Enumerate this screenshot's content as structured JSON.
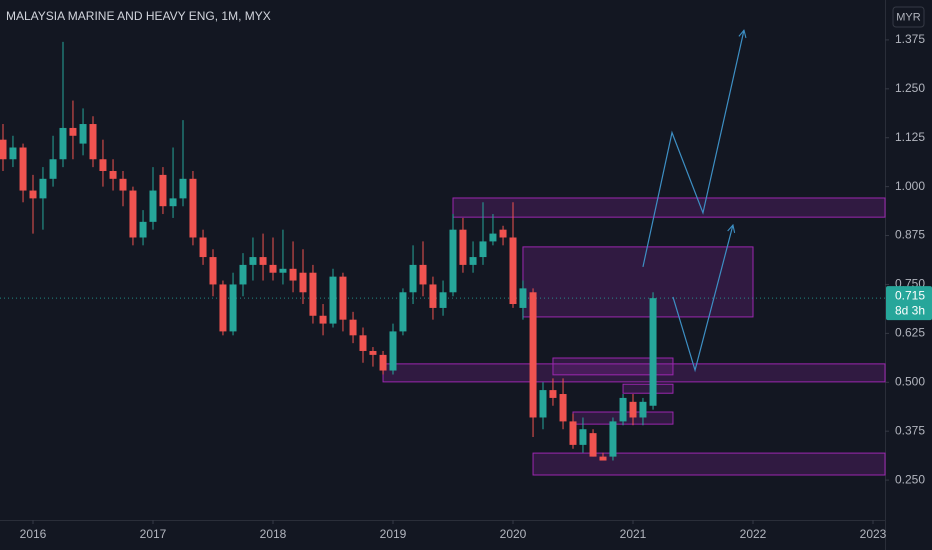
{
  "chart_data": {
    "type": "candlestick",
    "title": "MALAYSIA MARINE AND HEAVY ENG, 1M, MYX",
    "currency": "MYR",
    "countdown": "8d 3h",
    "last_price": 0.715,
    "up_color": "#26a69a",
    "down_color": "#ef5350",
    "zone_color": "#9c27b0",
    "arrow_color": "#3d8fc4",
    "xlim": [
      2015.725,
      2023.1
    ],
    "xticks": [
      2016,
      2017,
      2018,
      2019,
      2020,
      2021,
      2022,
      2023
    ],
    "ylim": [
      0.148,
      1.477
    ],
    "yticks": [
      {
        "value": 0.25,
        "label": "0.250"
      },
      0.375,
      {
        "value": 0.5,
        "label": "0.500"
      },
      0.625,
      {
        "value": 0.75,
        "label": "0.750"
      },
      0.875,
      {
        "value": 1,
        "label": "1.000"
      },
      1.125,
      {
        "value": 1.25,
        "label": "1.250"
      },
      1.375
    ],
    "x": [
      2015.75,
      2015.833,
      2015.917,
      2016.0,
      2016.083,
      2016.167,
      2016.25,
      2016.333,
      2016.417,
      2016.5,
      2016.583,
      2016.667,
      2016.75,
      2016.833,
      2016.917,
      2017.0,
      2017.083,
      2017.167,
      2017.25,
      2017.333,
      2017.417,
      2017.5,
      2017.583,
      2017.667,
      2017.75,
      2017.833,
      2017.917,
      2018.0,
      2018.083,
      2018.167,
      2018.25,
      2018.333,
      2018.417,
      2018.5,
      2018.583,
      2018.667,
      2018.75,
      2018.833,
      2018.917,
      2019.0,
      2019.083,
      2019.167,
      2019.25,
      2019.333,
      2019.417,
      2019.5,
      2019.583,
      2019.667,
      2019.75,
      2019.833,
      2019.917,
      2020.0,
      2020.083,
      2020.167,
      2020.25,
      2020.333,
      2020.417,
      2020.5,
      2020.583,
      2020.667,
      2020.75,
      2020.833,
      2020.917,
      2021.0,
      2021.083,
      2021.167
    ],
    "open": [
      1.12,
      1.07,
      1.1,
      0.99,
      0.97,
      1.02,
      1.07,
      1.15,
      1.11,
      1.16,
      1.07,
      1.04,
      1.02,
      0.99,
      0.87,
      0.91,
      1.03,
      0.95,
      0.97,
      1.02,
      0.87,
      0.82,
      0.75,
      0.63,
      0.75,
      0.8,
      0.82,
      0.8,
      0.78,
      0.79,
      0.78,
      0.78,
      0.67,
      0.65,
      0.77,
      0.66,
      0.62,
      0.58,
      0.57,
      0.53,
      0.63,
      0.73,
      0.8,
      0.75,
      0.69,
      0.73,
      0.89,
      0.8,
      0.82,
      0.86,
      0.89,
      0.87,
      0.69,
      0.73,
      0.41,
      0.48,
      0.47,
      0.4,
      0.34,
      0.37,
      0.31,
      0.31,
      0.4,
      0.45,
      0.41,
      0.44
    ],
    "high": [
      1.16,
      1.13,
      1.11,
      1.03,
      1.05,
      1.13,
      1.37,
      1.22,
      1.2,
      1.18,
      1.12,
      1.07,
      1.04,
      1.0,
      0.94,
      1.05,
      1.05,
      1.1,
      1.17,
      1.04,
      0.89,
      0.84,
      0.76,
      0.78,
      0.83,
      0.87,
      0.88,
      0.87,
      0.89,
      0.86,
      0.84,
      0.8,
      0.7,
      0.79,
      0.78,
      0.68,
      0.64,
      0.59,
      0.58,
      0.65,
      0.74,
      0.85,
      0.86,
      0.77,
      0.76,
      0.93,
      0.92,
      0.86,
      0.96,
      0.93,
      0.9,
      0.96,
      0.76,
      0.74,
      0.5,
      0.51,
      0.51,
      0.42,
      0.41,
      0.38,
      0.32,
      0.41,
      0.47,
      0.47,
      0.46,
      0.73
    ],
    "low": [
      1.04,
      1.05,
      0.96,
      0.88,
      0.89,
      1.0,
      1.05,
      1.07,
      1.08,
      1.05,
      1.0,
      0.99,
      0.95,
      0.85,
      0.85,
      0.89,
      0.93,
      0.92,
      0.95,
      0.85,
      0.8,
      0.72,
      0.62,
      0.62,
      0.72,
      0.76,
      0.76,
      0.76,
      0.75,
      0.73,
      0.7,
      0.65,
      0.62,
      0.64,
      0.63,
      0.6,
      0.55,
      0.54,
      0.52,
      0.52,
      0.62,
      0.7,
      0.72,
      0.66,
      0.67,
      0.72,
      0.78,
      0.78,
      0.8,
      0.85,
      0.85,
      0.69,
      0.66,
      0.36,
      0.38,
      0.44,
      0.38,
      0.33,
      0.32,
      0.31,
      0.3,
      0.3,
      0.39,
      0.39,
      0.39,
      0.43
    ],
    "close": [
      1.07,
      1.1,
      0.99,
      0.97,
      1.02,
      1.07,
      1.15,
      1.13,
      1.16,
      1.07,
      1.04,
      1.02,
      0.99,
      0.87,
      0.91,
      0.99,
      0.95,
      0.97,
      1.02,
      0.87,
      0.82,
      0.75,
      0.63,
      0.75,
      0.8,
      0.82,
      0.8,
      0.78,
      0.79,
      0.76,
      0.73,
      0.67,
      0.65,
      0.77,
      0.66,
      0.62,
      0.58,
      0.57,
      0.53,
      0.63,
      0.73,
      0.8,
      0.75,
      0.69,
      0.73,
      0.89,
      0.8,
      0.82,
      0.86,
      0.88,
      0.87,
      0.7,
      0.74,
      0.41,
      0.48,
      0.46,
      0.4,
      0.34,
      0.38,
      0.31,
      0.3,
      0.4,
      0.46,
      0.41,
      0.45,
      0.715
    ],
    "zones": [
      {
        "x": [
          2019.5,
          2023.1
        ],
        "y": [
          0.922,
          0.971
        ]
      },
      {
        "x": [
          2020.083,
          2022.0
        ],
        "y": [
          0.667,
          0.846
        ]
      },
      {
        "x": [
          2018.917,
          2023.1
        ],
        "y": [
          0.501,
          0.547
        ]
      },
      {
        "x": [
          2020.333,
          2021.333
        ],
        "y": [
          0.519,
          0.562
        ]
      },
      {
        "x": [
          2020.917,
          2021.333
        ],
        "y": [
          0.472,
          0.495
        ]
      },
      {
        "x": [
          2020.5,
          2021.333
        ],
        "y": [
          0.393,
          0.424
        ]
      },
      {
        "x": [
          2020.167,
          2023.1
        ],
        "y": [
          0.263,
          0.319
        ]
      }
    ],
    "arrows": [
      {
        "x": [
          2021.083,
          2021.325,
          2021.583,
          2021.925
        ],
        "y": [
          0.795,
          1.138,
          0.933,
          1.4
        ]
      },
      {
        "x": [
          2021.333,
          2021.517,
          2021.833
        ],
        "y": [
          0.718,
          0.531,
          0.902
        ]
      }
    ]
  }
}
